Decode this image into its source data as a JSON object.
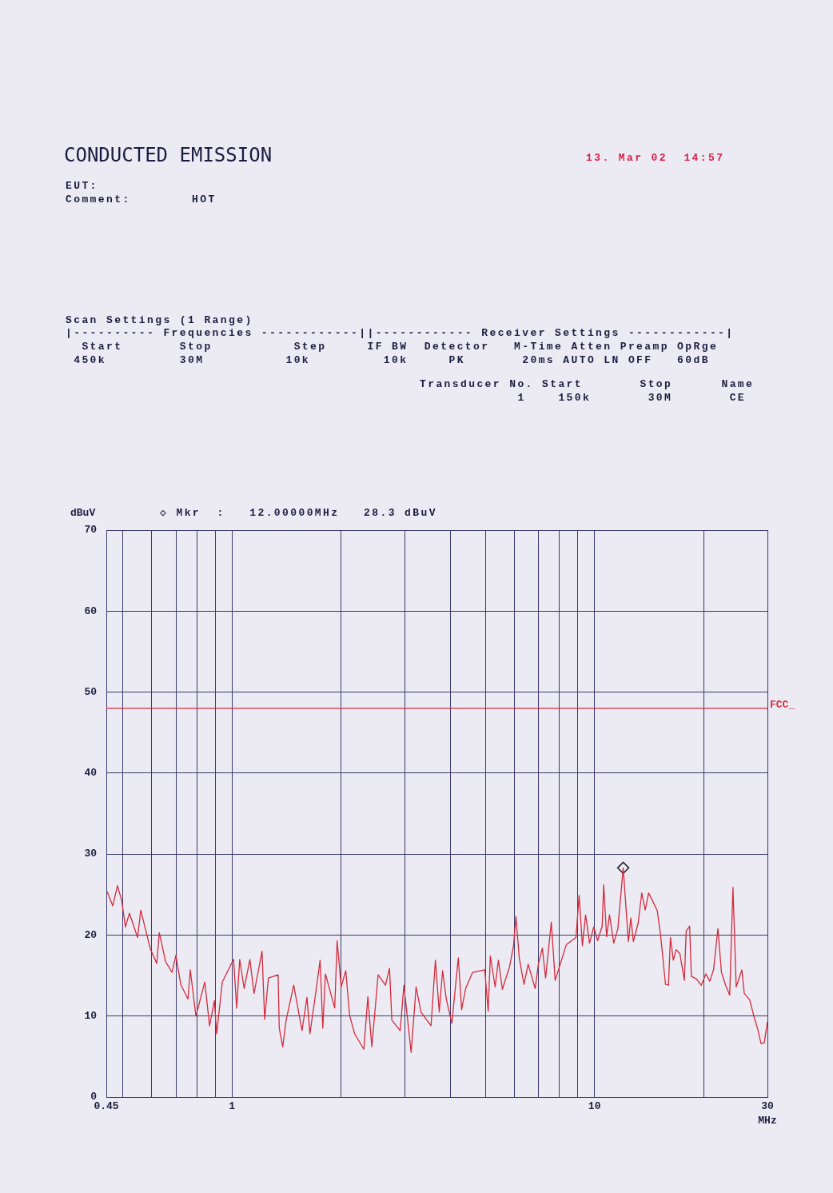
{
  "chart_data": {
    "type": "line",
    "title": "CONDUCTED EMISSION",
    "xlabel": "MHz",
    "ylabel": "dBuV",
    "log": "x",
    "grid": true,
    "legend": false,
    "marker": "none",
    "x": [
      0.452,
      0.469,
      0.483,
      0.496,
      0.508,
      0.521,
      0.549,
      0.56,
      0.595,
      0.62,
      0.63,
      0.656,
      0.683,
      0.7,
      0.722,
      0.756,
      0.767,
      0.795,
      0.841,
      0.867,
      0.894,
      0.907,
      0.94,
      1.01,
      1.03,
      1.05,
      1.08,
      1.12,
      1.15,
      1.21,
      1.23,
      1.26,
      1.34,
      1.35,
      1.38,
      1.41,
      1.48,
      1.56,
      1.61,
      1.64,
      1.69,
      1.75,
      1.78,
      1.81,
      1.92,
      1.95,
      2.0,
      2.06,
      2.11,
      2.18,
      2.31,
      2.37,
      2.43,
      2.53,
      2.65,
      2.72,
      2.76,
      2.91,
      2.98,
      3.12,
      3.22,
      3.32,
      3.54,
      3.64,
      3.73,
      3.81,
      3.9,
      4.04,
      4.21,
      4.3,
      4.41,
      4.61,
      4.98,
      5.09,
      5.16,
      5.32,
      5.43,
      5.57,
      5.83,
      5.98,
      6.07,
      6.2,
      6.39,
      6.56,
      6.86,
      7.0,
      7.18,
      7.33,
      7.6,
      7.79,
      8.12,
      8.36,
      8.76,
      8.89,
      9.07,
      9.26,
      9.45,
      9.69,
      9.95,
      10.2,
      10.5,
      10.6,
      10.8,
      11.0,
      11.3,
      11.6,
      12,
      12.4,
      12.6,
      12.8,
      13.2,
      13.5,
      13.8,
      14.1,
      14.4,
      14.9,
      15.2,
      15.7,
      16.0,
      16.2,
      16.5,
      16.8,
      17.2,
      17.7,
      17.9,
      18.3,
      18.5,
      19.1,
      19.7,
      20.3,
      20.8,
      21.3,
      21.9,
      22.4,
      23.0,
      23.6,
      24.1,
      24.6,
      25.5,
      25.9,
      26.8,
      27.6,
      28.2,
      28.8,
      29.4,
      30.0
    ],
    "series": [
      {
        "color": "#d42a3c",
        "values": [
          25.4,
          23.6,
          26.1,
          24.3,
          21.0,
          22.7,
          19.7,
          23.1,
          18.3,
          16.5,
          20.3,
          16.7,
          15.4,
          17.5,
          13.9,
          12.1,
          15.7,
          10.0,
          14.2,
          8.8,
          11.9,
          7.8,
          14.2,
          17.0,
          11.0,
          17.0,
          13.4,
          17.0,
          12.8,
          18.0,
          9.6,
          14.7,
          15.1,
          8.5,
          6.2,
          9.5,
          13.8,
          8.2,
          12.3,
          7.8,
          11.9,
          16.9,
          8.5,
          15.2,
          11.0,
          19.3,
          13.6,
          15.6,
          10.1,
          7.8,
          5.9,
          12.4,
          6.2,
          15.1,
          13.8,
          15.9,
          9.5,
          8.2,
          13.8,
          5.5,
          13.6,
          10.5,
          8.8,
          16.9,
          10.5,
          15.6,
          12.1,
          9.1,
          17.2,
          10.8,
          13.4,
          15.4,
          15.7,
          10.6,
          17.4,
          13.6,
          16.9,
          13.3,
          16.1,
          18.7,
          22.3,
          17.2,
          13.9,
          16.4,
          13.4,
          16.4,
          18.4,
          14.7,
          21.6,
          14.4,
          17.0,
          18.8,
          19.5,
          19.7,
          24.9,
          18.7,
          22.5,
          19.0,
          21.0,
          19.3,
          21.1,
          26.2,
          19.8,
          22.5,
          19.0,
          20.8,
          28.3,
          19.2,
          22.1,
          19.2,
          21.5,
          25.2,
          23.1,
          25.2,
          24.4,
          23.0,
          20.2,
          13.9,
          13.8,
          19.7,
          16.9,
          18.2,
          17.7,
          14.4,
          20.5,
          21.1,
          14.9,
          14.6,
          13.8,
          15.2,
          14.3,
          15.7,
          20.8,
          15.4,
          13.8,
          12.6,
          25.9,
          13.6,
          15.7,
          12.8,
          12.0,
          9.8,
          8.4,
          6.6,
          6.7,
          9.3
        ]
      },
      {
        "type": "scatter",
        "x": [
          12
        ],
        "values": [
          28.3
        ],
        "color": "#202030",
        "marker": "diamond"
      }
    ],
    "xlim": [
      0.45,
      30
    ],
    "xticks": [
      {
        "value": 0.45,
        "label": "0.45"
      },
      {
        "value": 0.5,
        "label": null
      },
      {
        "value": 0.6,
        "label": null
      },
      {
        "value": 0.7,
        "label": null
      },
      {
        "value": 0.8,
        "label": null
      },
      {
        "value": 0.9,
        "label": null
      },
      1,
      {
        "value": 2,
        "label": null
      },
      {
        "value": 3,
        "label": null
      },
      {
        "value": 4,
        "label": null
      },
      {
        "value": 5,
        "label": null
      },
      {
        "value": 6,
        "label": null
      },
      {
        "value": 7,
        "label": null
      },
      {
        "value": 8,
        "label": null
      },
      {
        "value": 9,
        "label": null
      },
      10,
      {
        "value": 20,
        "label": null
      },
      30
    ],
    "ylim": [
      0,
      70
    ],
    "yticks": [
      0,
      10,
      20,
      30,
      40,
      50,
      60,
      70
    ],
    "ref_lines": [
      {
        "axis": "y",
        "value": 48,
        "label": "FCC_",
        "color": "#d42a3c"
      }
    ],
    "annotations": [
      "13. Mar 02  14:57",
      "EUT:",
      "Comment:",
      "HOT",
      "Scan Settings (1 Range)",
      "|---------- Frequencies ------------||------------ Receiver Settings ------------|",
      "  Start       Stop          Step     IF BW  Detector   M-Time Atten Preamp OpRge",
      " 450k         30M          10k         10k     PK       20ms AUTO LN OFF   60dB",
      "Transducer No. Start       Stop      Name",
      "            1    150k       30M       CE",
      "◇ Mkr  :   12.00000MHz   28.3 dBuV"
    ]
  }
}
